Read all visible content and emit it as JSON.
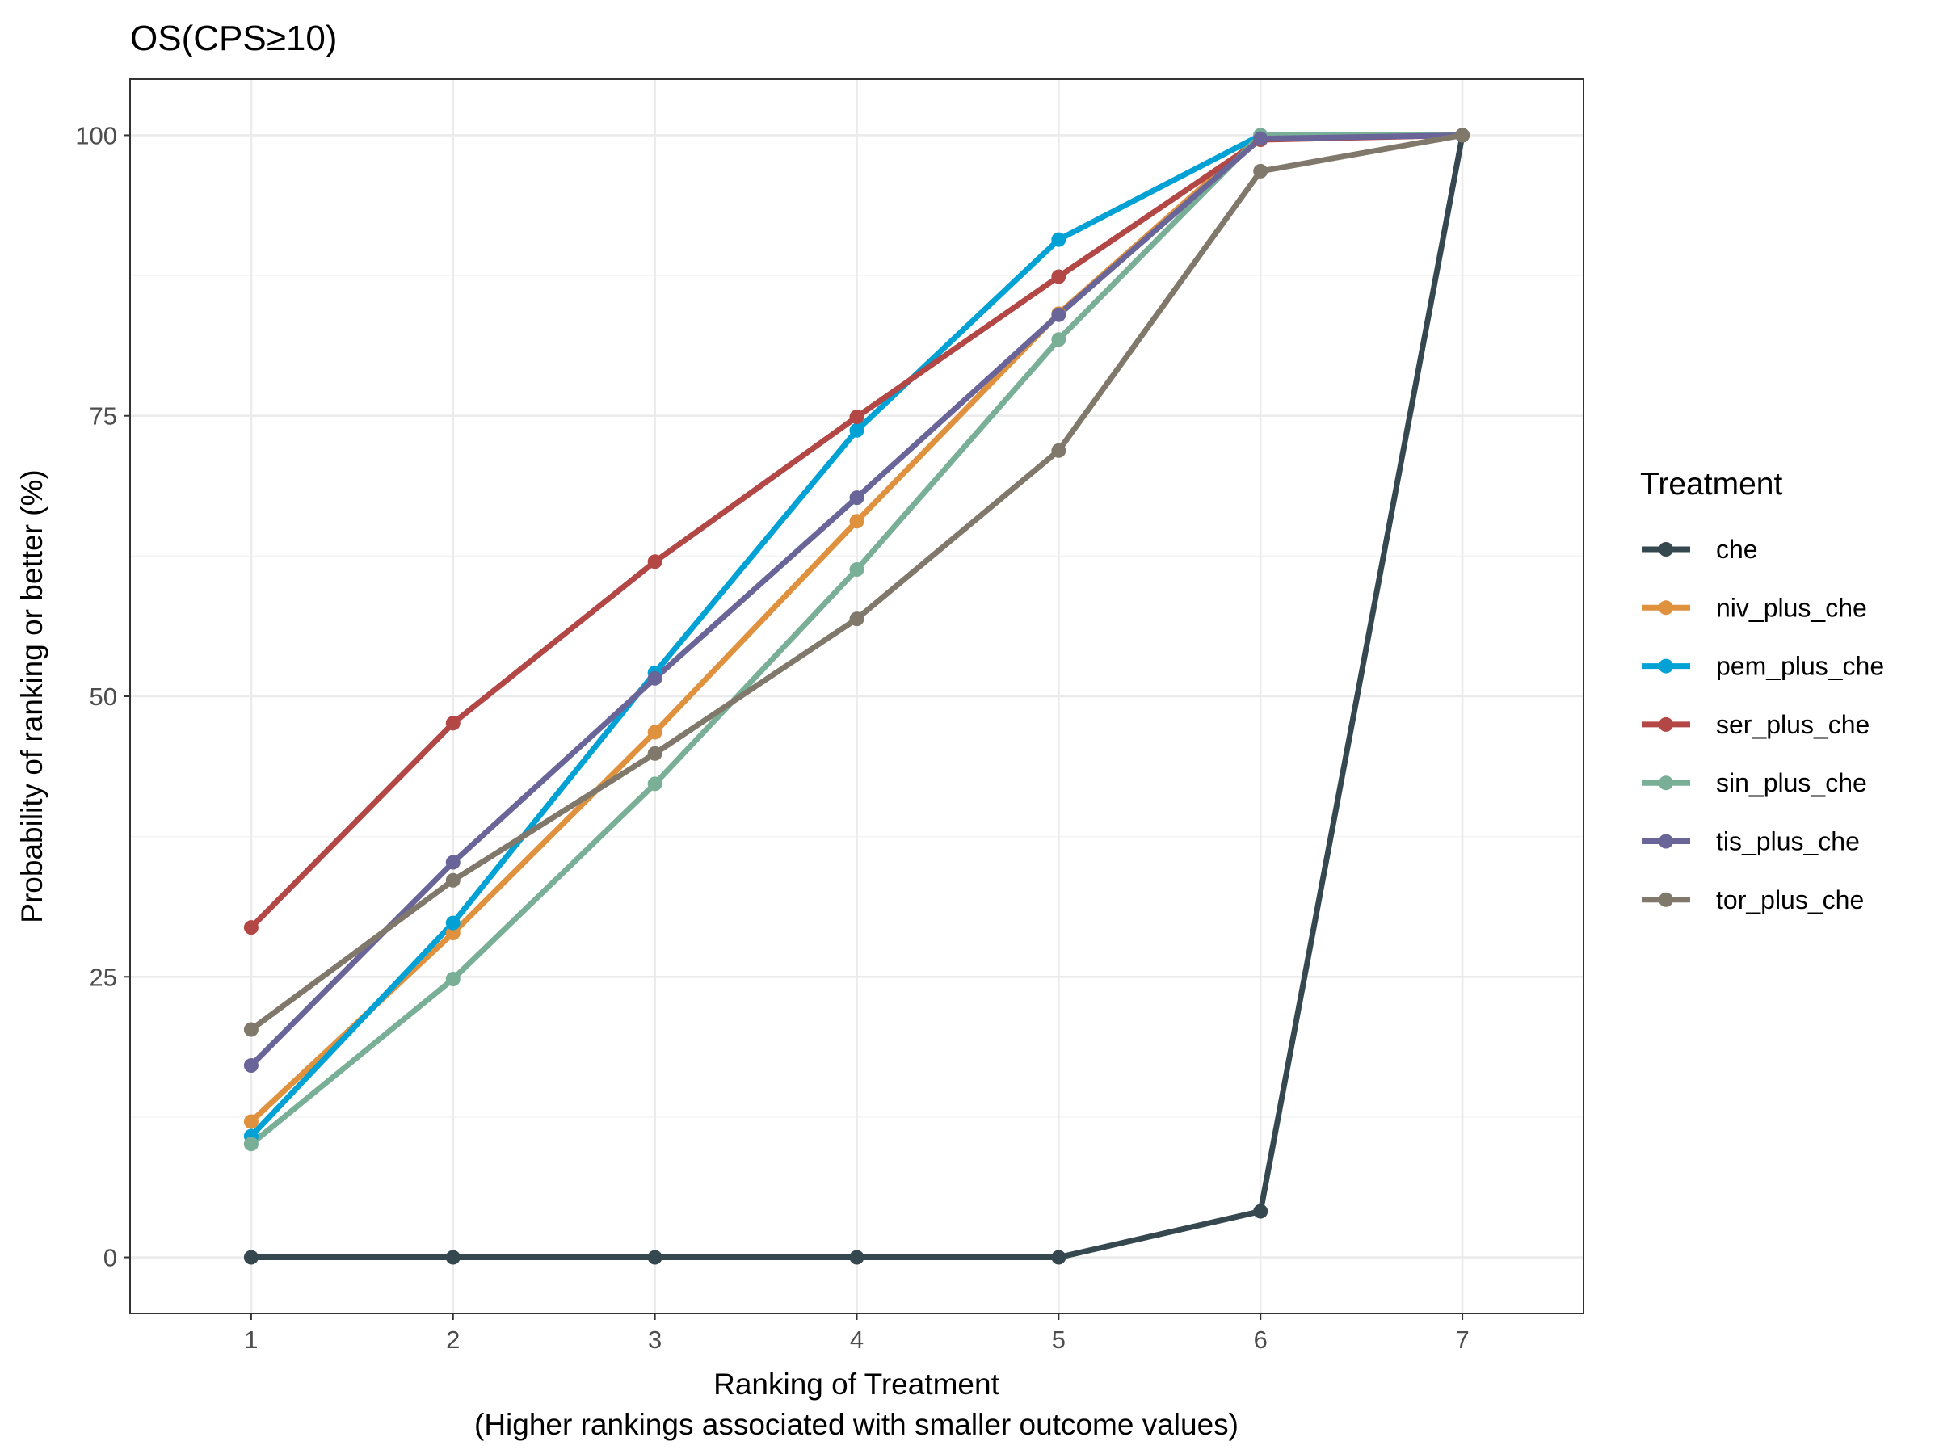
{
  "chart_data": {
    "type": "line",
    "title": "OS(CPS≥10)",
    "xlabel": "Ranking of Treatment",
    "xlabel2": "(Higher rankings associated with smaller outcome values)",
    "ylabel": "Probability of ranking or better (%)",
    "x": [
      1,
      2,
      3,
      4,
      5,
      6,
      7
    ],
    "xlim": [
      0.4,
      7.6
    ],
    "ylim": [
      -5,
      105
    ],
    "yticks": [
      0,
      25,
      50,
      75,
      100
    ],
    "xticks": [
      1,
      2,
      3,
      4,
      5,
      6,
      7
    ],
    "grid": true,
    "legend": {
      "title": "Treatment",
      "placement": "right"
    },
    "series": [
      {
        "name": "che",
        "color": "#36484f",
        "values": [
          0,
          0,
          0,
          0,
          0,
          4.1,
          100
        ]
      },
      {
        "name": "niv_plus_che",
        "color": "#e0913d",
        "values": [
          12.1,
          28.9,
          46.8,
          65.6,
          84.1,
          100,
          100
        ]
      },
      {
        "name": "pem_plus_che",
        "color": "#00a1d5",
        "values": [
          10.8,
          29.8,
          52.1,
          73.7,
          90.7,
          100,
          100
        ]
      },
      {
        "name": "ser_plus_che",
        "color": "#b24745",
        "values": [
          29.4,
          47.6,
          62.0,
          74.9,
          87.4,
          99.6,
          100
        ]
      },
      {
        "name": "sin_plus_che",
        "color": "#79af97",
        "values": [
          10.1,
          24.8,
          42.2,
          61.3,
          81.8,
          100,
          100
        ]
      },
      {
        "name": "tis_plus_che",
        "color": "#6a6599",
        "values": [
          17.1,
          35.2,
          51.6,
          67.7,
          84.0,
          99.7,
          100
        ]
      },
      {
        "name": "tor_plus_che",
        "color": "#80796b",
        "values": [
          20.3,
          33.6,
          44.9,
          56.9,
          71.9,
          96.8,
          100
        ]
      }
    ]
  }
}
